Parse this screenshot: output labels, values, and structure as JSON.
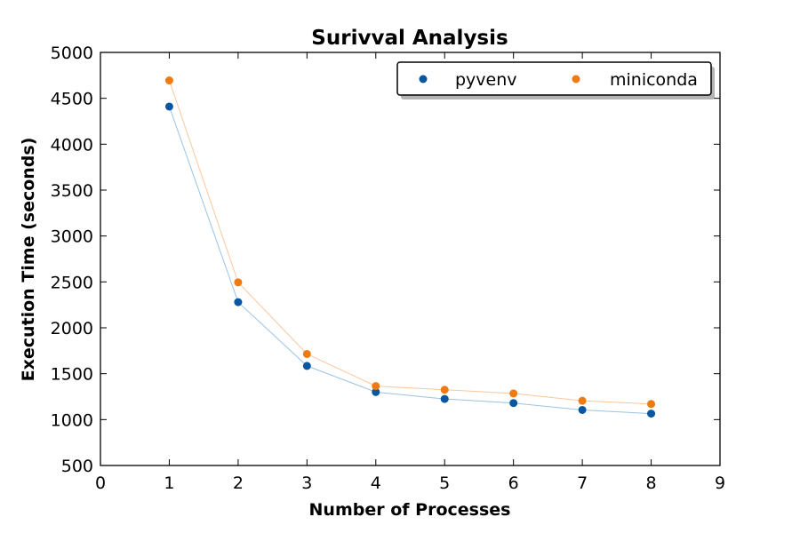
{
  "chart_data": {
    "type": "scatter",
    "title": "Surivval Analysis",
    "xlabel": "Number of Processes",
    "ylabel": "Execution Time (seconds)",
    "xlim": [
      0,
      9
    ],
    "ylim": [
      500,
      5000
    ],
    "xticks": [
      0,
      1,
      2,
      3,
      4,
      5,
      6,
      7,
      8,
      9
    ],
    "yticks": [
      500,
      1000,
      1500,
      2000,
      2500,
      3000,
      3500,
      4000,
      4500,
      5000
    ],
    "grid": false,
    "legend_position": "top-right",
    "x": [
      1,
      2,
      3,
      4,
      5,
      6,
      7,
      8
    ],
    "series": [
      {
        "name": "pyvenv",
        "color": "#0b56a0",
        "line_color": "#9cc3e4",
        "values": [
          4410,
          2280,
          1585,
          1300,
          1225,
          1180,
          1105,
          1065
        ]
      },
      {
        "name": "miniconda",
        "color": "#f07a12",
        "line_color": "#f9c89c",
        "values": [
          4695,
          2495,
          1715,
          1365,
          1325,
          1285,
          1205,
          1170
        ]
      }
    ]
  }
}
